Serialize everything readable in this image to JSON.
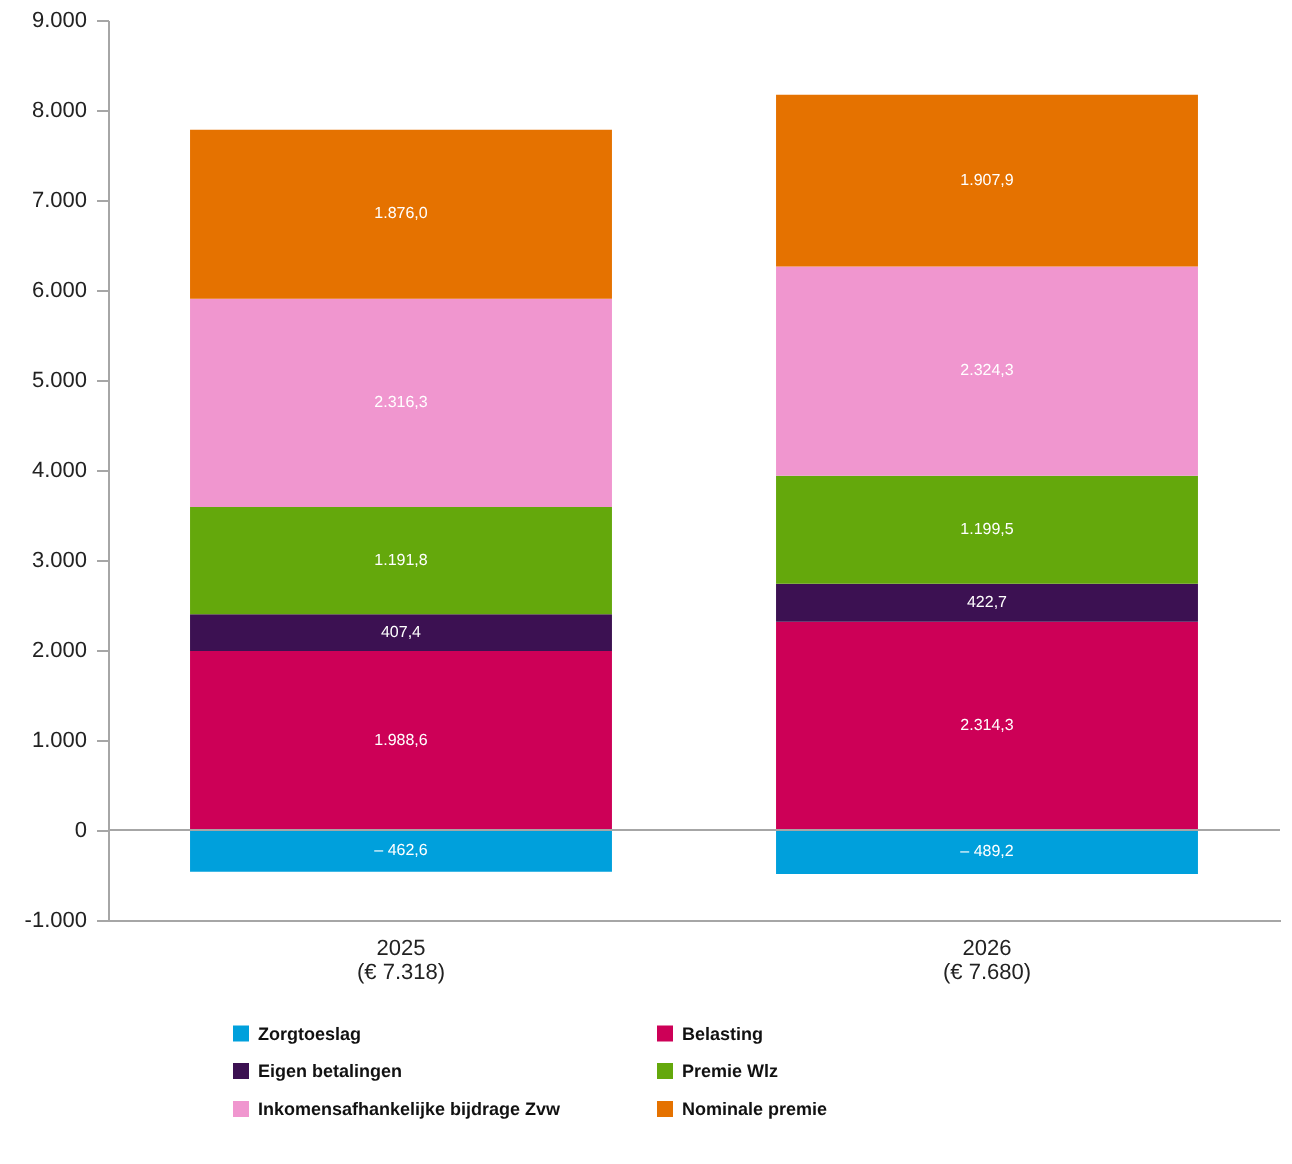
{
  "chart_data": {
    "type": "bar",
    "stacked": true,
    "categories": [
      "2025\n(€ 7.318)",
      "2026\n(€ 7.680)"
    ],
    "series": [
      {
        "name": "Zorgtoeslag",
        "color": "#00a0dc",
        "values": [
          -462.6,
          -489.2
        ],
        "value_labels": [
          "– 462,6",
          "– 489,2"
        ]
      },
      {
        "name": "Belasting",
        "color": "#cd0057",
        "values": [
          1988.6,
          2314.3
        ],
        "value_labels": [
          "1.988,6",
          "2.314,3"
        ]
      },
      {
        "name": "Eigen betalingen",
        "color": "#3c1152",
        "values": [
          407.4,
          422.7
        ],
        "value_labels": [
          "407,4",
          "422,7"
        ]
      },
      {
        "name": "Premie Wlz",
        "color": "#64a80c",
        "values": [
          1191.8,
          1199.5
        ],
        "value_labels": [
          "1.191,8",
          "1.199,5"
        ]
      },
      {
        "name": "Inkomensafhankelijke bijdrage Zvw",
        "color": "#f096cf",
        "values": [
          2316.3,
          2324.3
        ],
        "value_labels": [
          "2.316,3",
          "2.324,3"
        ]
      },
      {
        "name": "Nominale premie",
        "color": "#e57200",
        "values": [
          1876.0,
          1907.9
        ],
        "value_labels": [
          "1.876,0",
          "1.907,9"
        ]
      }
    ],
    "ylim": [
      -1000,
      9000
    ],
    "yticks": [
      {
        "value": -1000,
        "label": "-1.000"
      },
      0,
      {
        "value": 1000,
        "label": "1.000"
      },
      {
        "value": 2000,
        "label": "2.000"
      },
      {
        "value": 3000,
        "label": "3.000"
      },
      {
        "value": 4000,
        "label": "4.000"
      },
      {
        "value": 5000,
        "label": "5.000"
      },
      {
        "value": 6000,
        "label": "6.000"
      },
      {
        "value": 7000,
        "label": "7.000"
      },
      {
        "value": 8000,
        "label": "8.000"
      },
      {
        "value": 9000,
        "label": "9.000"
      }
    ],
    "ref_lines": [
      {
        "axis": "y",
        "value": 0,
        "color": "#a6a6a6"
      }
    ],
    "grid": false,
    "legend": "bottom"
  }
}
